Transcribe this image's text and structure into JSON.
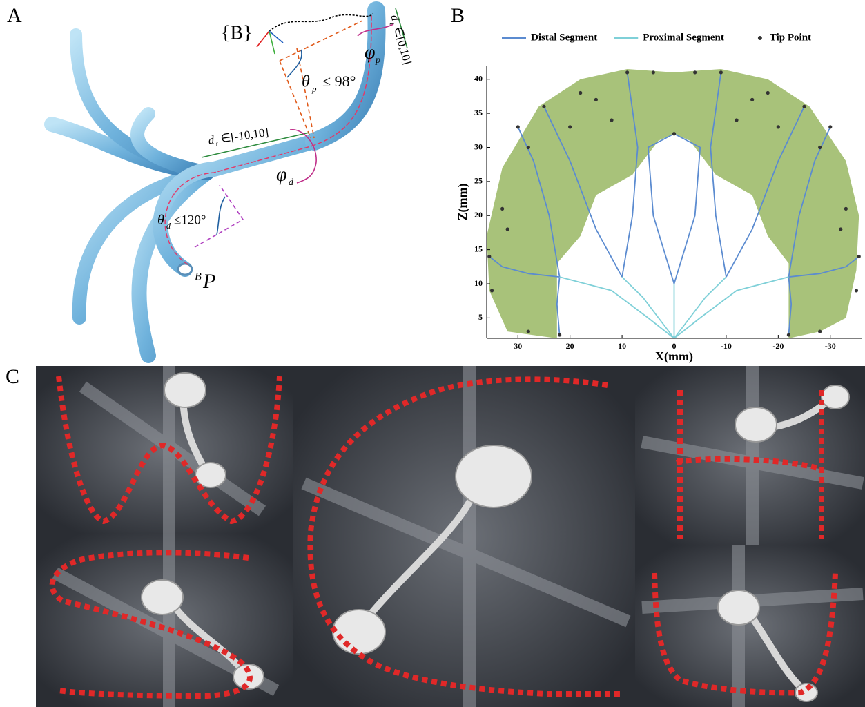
{
  "panel_a": {
    "label": "A",
    "frame": "{B}",
    "tip": {
      "sup": "B",
      "sym": "P"
    },
    "dt_proximal": {
      "sym": "d",
      "sub": "t",
      "range": "∈[0,10]"
    },
    "phi_p": {
      "sym": "φ",
      "sub": "p"
    },
    "theta_p": {
      "sym": "θ",
      "sub": "p",
      "bound": "≤ 98°"
    },
    "dt_distal": {
      "sym": "d",
      "sub": "t",
      "range": "∈[-10,10]"
    },
    "phi_d": {
      "sym": "φ",
      "sub": "d"
    },
    "theta_d": {
      "sym": "θ",
      "sub": "d",
      "bound": "≤120°"
    }
  },
  "chart_data": {
    "type": "workspace",
    "label": "B",
    "xlabel": "X(mm)",
    "ylabel": "Z(mm)",
    "xlim": [
      36,
      -36
    ],
    "ylim": [
      2,
      42
    ],
    "xticks": [
      30,
      20,
      10,
      0,
      -10,
      -20,
      -30
    ],
    "yticks": [
      5,
      10,
      15,
      20,
      25,
      30,
      35,
      40
    ],
    "legend": "top",
    "area": {
      "color": "#a8c27a",
      "x": [
        22.5,
        32,
        35.5,
        36,
        33,
        26,
        18,
        9,
        0,
        -9,
        -18,
        -26,
        -33,
        -35.5,
        -35,
        -33,
        -28,
        -22,
        -22,
        -18,
        -15,
        -8,
        -3,
        0,
        3,
        8,
        15,
        18,
        22.5
      ],
      "y": [
        2,
        3,
        9,
        17,
        27,
        36,
        40,
        41.5,
        41,
        41.5,
        40,
        36,
        28,
        20,
        12,
        5,
        3,
        2,
        13,
        17,
        23,
        26,
        31,
        32,
        31,
        26,
        23,
        17,
        13
      ]
    },
    "series": [
      {
        "name": "Distal Segment",
        "color": "#5b8bd0",
        "style": "line",
        "x": [
          22,
          28,
          33,
          35.5,
          null,
          22,
          22.5,
          22,
          null,
          22,
          24,
          27,
          30,
          null,
          10,
          15,
          20,
          25,
          null,
          10,
          8,
          7,
          9,
          null,
          0,
          4,
          5,
          0,
          null,
          0,
          -4,
          -5,
          0,
          null,
          -10,
          -8,
          -7,
          -9,
          null,
          -10,
          -15,
          -20,
          -25,
          null,
          -22,
          -24,
          -27,
          -30,
          null,
          -22,
          -22.5,
          -22,
          null,
          -22,
          -28,
          -33,
          -35.5
        ],
        "values": [
          11,
          11.5,
          12.5,
          14,
          null,
          11,
          7,
          2.5,
          null,
          11,
          20,
          28,
          33,
          null,
          11,
          18,
          28,
          36,
          null,
          11,
          20,
          30,
          41,
          null,
          10,
          20,
          30,
          32,
          null,
          10,
          20,
          30,
          32,
          null,
          11,
          20,
          30,
          41,
          null,
          11,
          18,
          28,
          36,
          null,
          11,
          20,
          28,
          33,
          null,
          11,
          7,
          2.5,
          null,
          11,
          11.5,
          12.5,
          14
        ]
      },
      {
        "name": "Proximal Segment",
        "color": "#7fd0d8",
        "style": "line",
        "x": [
          0,
          5,
          12,
          22,
          null,
          0,
          3,
          6,
          10,
          null,
          0,
          0,
          0,
          null,
          0,
          -3,
          -6,
          -10,
          null,
          0,
          -5,
          -12,
          -22
        ],
        "values": [
          2,
          5,
          9,
          11,
          null,
          2,
          5,
          8,
          11,
          null,
          2,
          6,
          10,
          null,
          2,
          5,
          8,
          11,
          null,
          2,
          5,
          9,
          11
        ]
      },
      {
        "name": "Tip Point",
        "color": "#333333",
        "style": "points",
        "x": [
          35.5,
          22,
          30,
          25,
          9,
          0,
          33,
          35,
          28,
          18,
          15,
          4,
          28,
          32,
          20,
          12,
          -4,
          -12,
          -20,
          -32,
          -28,
          -15,
          -18,
          -28,
          -35,
          -33,
          -9,
          -25,
          -30,
          -22,
          -35.5
        ],
        "values": [
          14,
          2.5,
          33,
          36,
          41,
          32,
          21,
          9,
          30,
          38,
          37,
          41,
          3,
          18,
          33,
          34,
          41,
          34,
          33,
          18,
          3,
          37,
          38,
          30,
          9,
          21,
          41,
          36,
          33,
          2.5,
          14
        ]
      }
    ]
  },
  "panel_c": {
    "label": "C"
  }
}
